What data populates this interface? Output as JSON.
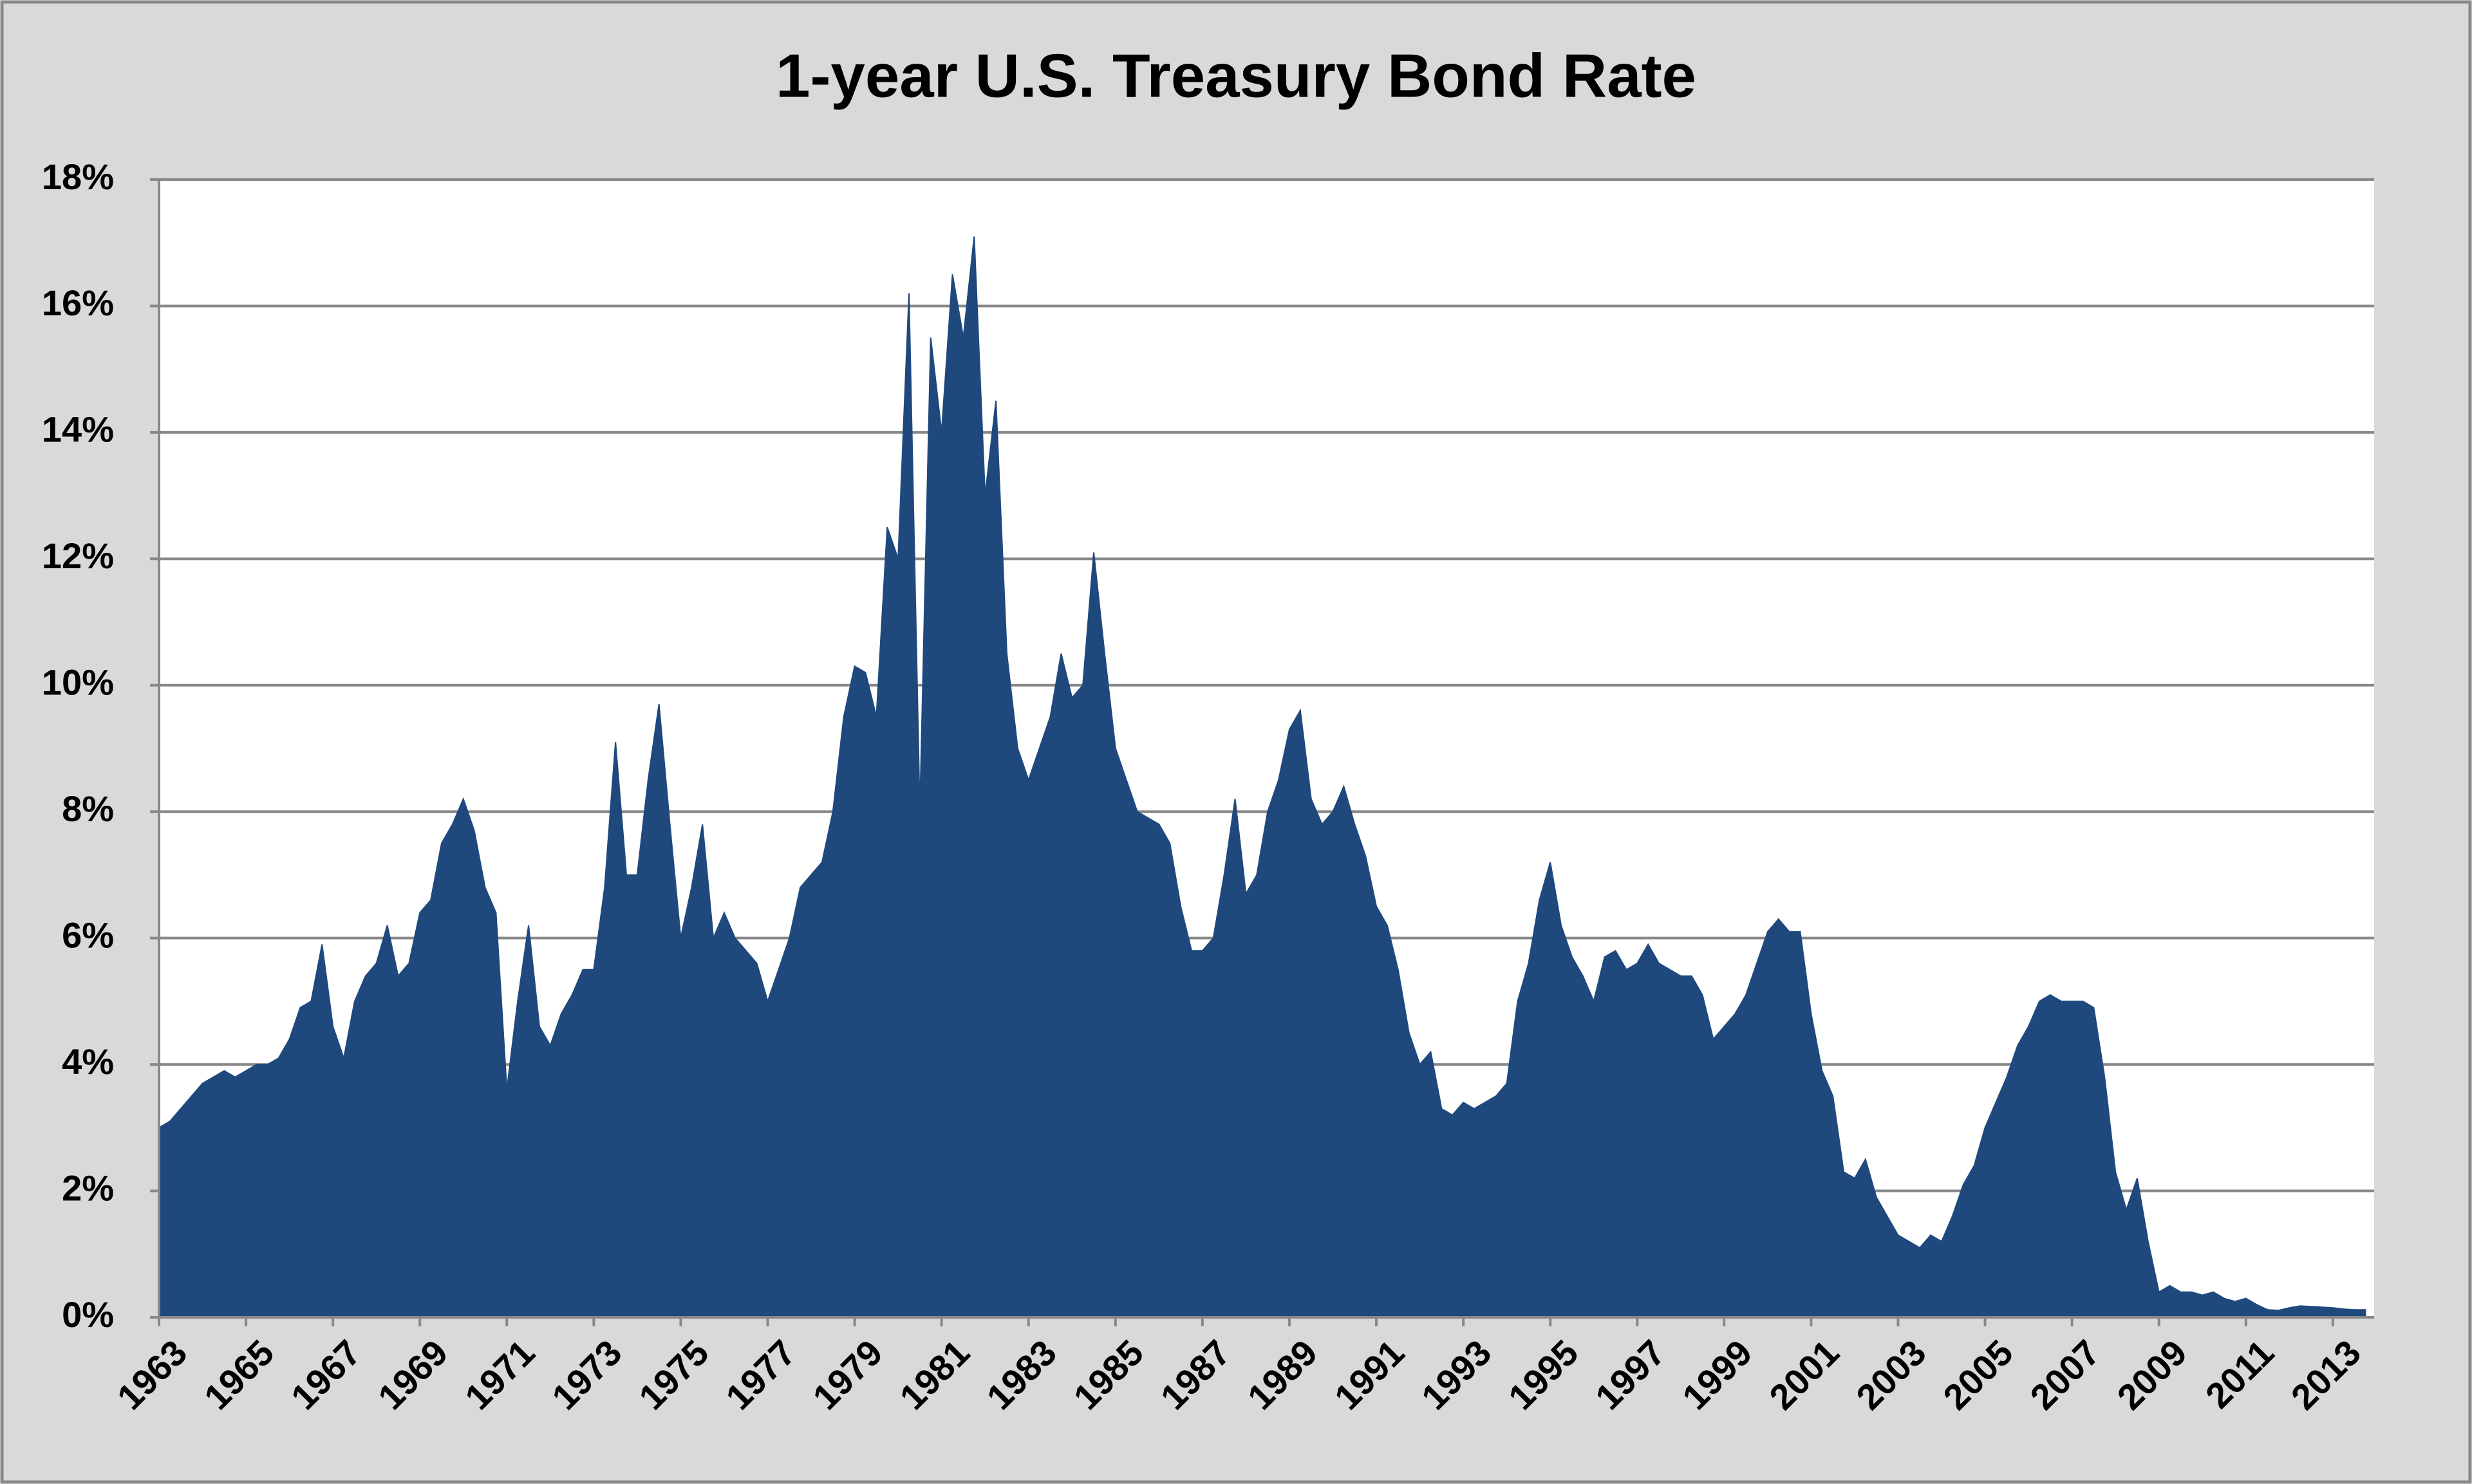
{
  "chart_data": {
    "type": "area",
    "title": "1-year U.S. Treasury Bond Rate",
    "color": "#1f497d",
    "grid": true,
    "xlim": [
      1963,
      2013.95
    ],
    "ylim": [
      0,
      18
    ],
    "xticks": [
      1963,
      1965,
      1967,
      1969,
      1971,
      1973,
      1975,
      1977,
      1979,
      1981,
      1983,
      1985,
      1987,
      1989,
      1991,
      1993,
      1995,
      1997,
      1999,
      2001,
      2003,
      2005,
      2007,
      2009,
      2011,
      2013
    ],
    "yticks": [
      {
        "value": 0,
        "label": "0%"
      },
      {
        "value": 2,
        "label": "2%"
      },
      {
        "value": 4,
        "label": "4%"
      },
      {
        "value": 6,
        "label": "6%"
      },
      {
        "value": 8,
        "label": "8%"
      },
      {
        "value": 10,
        "label": "10%"
      },
      {
        "value": 12,
        "label": "12%"
      },
      {
        "value": 14,
        "label": "14%"
      },
      {
        "value": 16,
        "label": "16%"
      },
      {
        "value": 18,
        "label": "18%"
      }
    ],
    "x": [
      1963,
      1963.25,
      1963.5,
      1963.75,
      1964,
      1964.25,
      1964.5,
      1964.75,
      1965,
      1965.25,
      1965.5,
      1965.75,
      1966,
      1966.25,
      1966.5,
      1966.75,
      1967,
      1967.25,
      1967.5,
      1967.75,
      1968,
      1968.25,
      1968.5,
      1968.75,
      1969,
      1969.25,
      1969.5,
      1969.75,
      1970,
      1970.25,
      1970.5,
      1970.75,
      1971,
      1971.25,
      1971.5,
      1971.75,
      1972,
      1972.25,
      1972.5,
      1972.75,
      1973,
      1973.25,
      1973.5,
      1973.75,
      1974,
      1974.25,
      1974.5,
      1974.75,
      1975,
      1975.25,
      1975.5,
      1975.75,
      1976,
      1976.25,
      1976.5,
      1976.75,
      1977,
      1977.25,
      1977.5,
      1977.75,
      1978,
      1978.25,
      1978.5,
      1978.75,
      1979,
      1979.25,
      1979.5,
      1979.75,
      1980,
      1980.25,
      1980.5,
      1980.75,
      1981,
      1981.25,
      1981.5,
      1981.75,
      1982,
      1982.25,
      1982.5,
      1982.75,
      1983,
      1983.25,
      1983.5,
      1983.75,
      1984,
      1984.25,
      1984.5,
      1984.75,
      1985,
      1985.25,
      1985.5,
      1985.75,
      1986,
      1986.25,
      1986.5,
      1986.75,
      1987,
      1987.25,
      1987.5,
      1987.75,
      1988,
      1988.25,
      1988.5,
      1988.75,
      1989,
      1989.25,
      1989.5,
      1989.75,
      1990,
      1990.25,
      1990.5,
      1990.75,
      1991,
      1991.25,
      1991.5,
      1991.75,
      1992,
      1992.25,
      1992.5,
      1992.75,
      1993,
      1993.25,
      1993.5,
      1993.75,
      1994,
      1994.25,
      1994.5,
      1994.75,
      1995,
      1995.25,
      1995.5,
      1995.75,
      1996,
      1996.25,
      1996.5,
      1996.75,
      1997,
      1997.25,
      1997.5,
      1997.75,
      1998,
      1998.25,
      1998.5,
      1998.75,
      1999,
      1999.25,
      1999.5,
      1999.75,
      2000,
      2000.25,
      2000.5,
      2000.75,
      2001,
      2001.25,
      2001.5,
      2001.75,
      2002,
      2002.25,
      2002.5,
      2002.75,
      2003,
      2003.25,
      2003.5,
      2003.75,
      2004,
      2004.25,
      2004.5,
      2004.75,
      2005,
      2005.25,
      2005.5,
      2005.75,
      2006,
      2006.25,
      2006.5,
      2006.75,
      2007,
      2007.25,
      2007.5,
      2007.75,
      2008,
      2008.25,
      2008.5,
      2008.75,
      2009,
      2009.25,
      2009.5,
      2009.75,
      2010,
      2010.25,
      2010.5,
      2010.75,
      2011,
      2011.25,
      2011.5,
      2011.75,
      2012,
      2012.25,
      2012.5,
      2012.75,
      2013,
      2013.25,
      2013.5,
      2013.75
    ],
    "values": [
      3.0,
      3.1,
      3.3,
      3.5,
      3.7,
      3.8,
      3.9,
      3.8,
      3.9,
      4.0,
      4.0,
      4.1,
      4.4,
      4.9,
      5.0,
      5.9,
      4.6,
      4.1,
      5.0,
      5.4,
      5.6,
      6.2,
      5.4,
      5.6,
      6.4,
      6.6,
      7.5,
      7.8,
      8.2,
      7.7,
      6.8,
      6.4,
      3.6,
      5.0,
      6.2,
      4.6,
      4.3,
      4.8,
      5.1,
      5.5,
      5.5,
      6.8,
      9.1,
      7.0,
      7.0,
      8.5,
      9.7,
      7.8,
      6.0,
      6.8,
      7.8,
      6.0,
      6.4,
      6.0,
      5.8,
      5.6,
      5.0,
      5.5,
      6.0,
      6.8,
      7.0,
      7.2,
      8.0,
      9.5,
      10.3,
      10.2,
      9.5,
      12.5,
      12.0,
      16.2,
      8.0,
      15.5,
      14.0,
      16.5,
      15.5,
      17.1,
      13.0,
      14.5,
      10.5,
      9.0,
      8.5,
      9.0,
      9.5,
      10.5,
      9.8,
      10.0,
      12.1,
      10.5,
      9.0,
      8.5,
      8.0,
      7.9,
      7.8,
      7.5,
      6.5,
      5.8,
      5.8,
      6.0,
      7.0,
      8.2,
      6.7,
      7.0,
      8.0,
      8.5,
      9.3,
      9.6,
      8.2,
      7.8,
      8.0,
      8.4,
      7.8,
      7.3,
      6.5,
      6.2,
      5.5,
      4.5,
      4.0,
      4.2,
      3.3,
      3.2,
      3.4,
      3.3,
      3.4,
      3.5,
      3.7,
      5.0,
      5.6,
      6.6,
      7.2,
      6.2,
      5.7,
      5.4,
      5.0,
      5.7,
      5.8,
      5.5,
      5.6,
      5.9,
      5.6,
      5.5,
      5.4,
      5.4,
      5.1,
      4.4,
      4.6,
      4.8,
      5.1,
      5.6,
      6.1,
      6.3,
      6.1,
      6.1,
      4.8,
      3.9,
      3.5,
      2.3,
      2.2,
      2.5,
      1.9,
      1.6,
      1.3,
      1.2,
      1.1,
      1.3,
      1.2,
      1.6,
      2.1,
      2.4,
      3.0,
      3.4,
      3.8,
      4.3,
      4.6,
      5.0,
      5.1,
      5.0,
      5.0,
      5.0,
      4.9,
      3.8,
      2.3,
      1.7,
      2.2,
      1.2,
      0.4,
      0.5,
      0.4,
      0.4,
      0.35,
      0.4,
      0.3,
      0.25,
      0.3,
      0.2,
      0.12,
      0.11,
      0.15,
      0.18,
      0.17,
      0.16,
      0.15,
      0.13,
      0.12,
      0.12
    ]
  }
}
